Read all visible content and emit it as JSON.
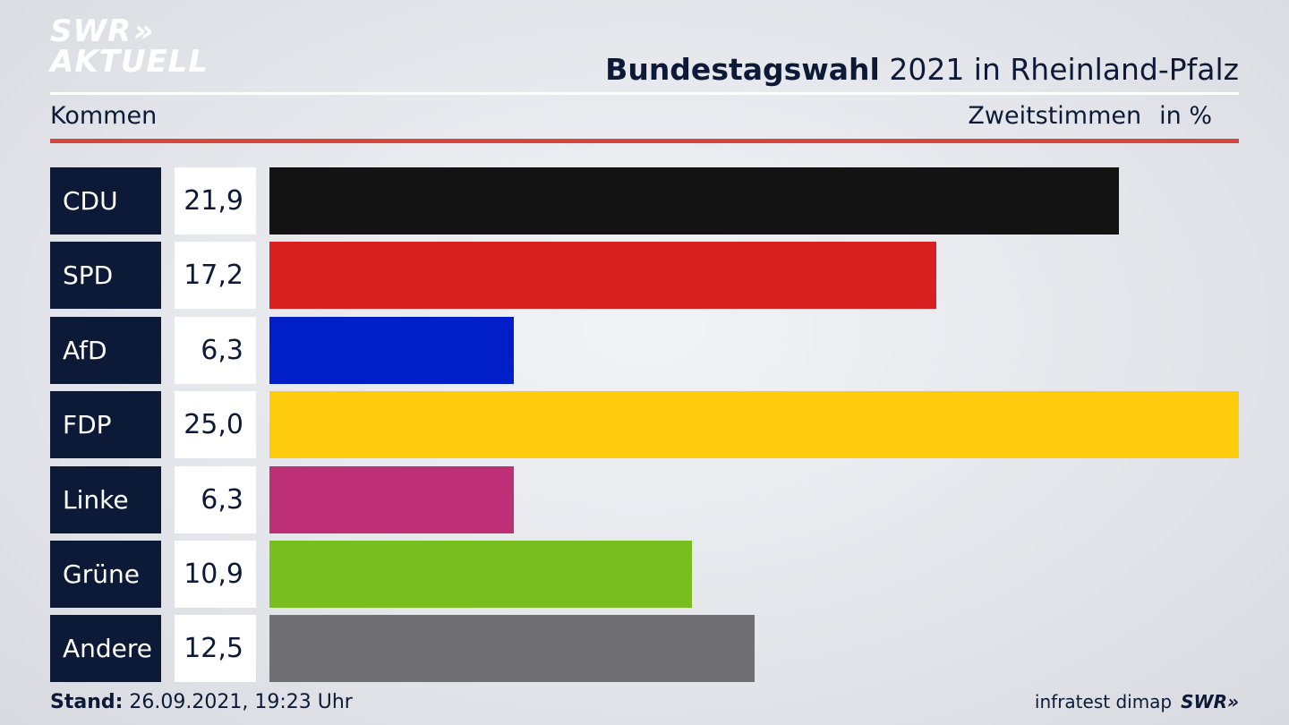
{
  "brand": {
    "logo_line1": "SWR",
    "logo_arrows": "»",
    "logo_line2": "AKTUELL"
  },
  "header": {
    "title_bold": "Bundestagswahl",
    "title_rest": "2021 in Rheinland-Pfalz"
  },
  "subheader": {
    "place": "Kommen",
    "measure": "Zweitstimmen",
    "unit": "in %"
  },
  "chart_data": {
    "type": "bar",
    "orientation": "horizontal",
    "categories": [
      "CDU",
      "SPD",
      "AfD",
      "FDP",
      "Linke",
      "Grüne",
      "Andere"
    ],
    "values": [
      21.9,
      17.2,
      6.3,
      25.0,
      6.3,
      10.9,
      12.5
    ],
    "value_labels": [
      "21,9",
      "17,2",
      "6,3",
      "25,0",
      "6,3",
      "10,9",
      "12,5"
    ],
    "colors": [
      "#131313",
      "#d92020",
      "#001fc8",
      "#fecc0c",
      "#bd3075",
      "#78be1e",
      "#707072"
    ],
    "xlim": [
      0,
      25.0
    ],
    "grid": false,
    "legend": "none"
  },
  "footer": {
    "stand_label": "Stand:",
    "stand_value": "26.09.2021, 19:23 Uhr",
    "source": "infratest dimap",
    "brand": "SWR»"
  }
}
